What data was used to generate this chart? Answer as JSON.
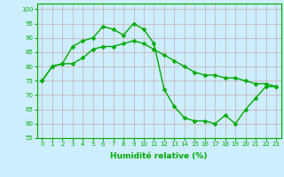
{
  "xlabel": "Humidité relative (%)",
  "background_color": "#cceeff",
  "grid_color": "#aaccaa",
  "line_color": "#00aa00",
  "xlim": [
    -0.5,
    23.5
  ],
  "ylim": [
    55,
    102
  ],
  "yticks": [
    55,
    60,
    65,
    70,
    75,
    80,
    85,
    90,
    95,
    100
  ],
  "xticks": [
    0,
    1,
    2,
    3,
    4,
    5,
    6,
    7,
    8,
    9,
    10,
    11,
    12,
    13,
    14,
    15,
    16,
    17,
    18,
    19,
    20,
    21,
    22,
    23
  ],
  "series1": [
    75,
    80,
    81,
    87,
    89,
    90,
    94,
    93,
    91,
    95,
    93,
    88,
    72,
    66,
    62,
    61,
    61,
    60,
    63,
    60,
    65,
    69,
    73,
    73
  ],
  "series2": [
    75,
    80,
    81,
    81,
    83,
    86,
    87,
    87,
    88,
    89,
    88,
    86,
    84,
    82,
    80,
    78,
    77,
    77,
    76,
    76,
    75,
    74,
    74,
    73
  ],
  "markersize": 2.5,
  "linewidth": 1.0,
  "xlabel_fontsize": 6.5,
  "tick_fontsize": 5
}
